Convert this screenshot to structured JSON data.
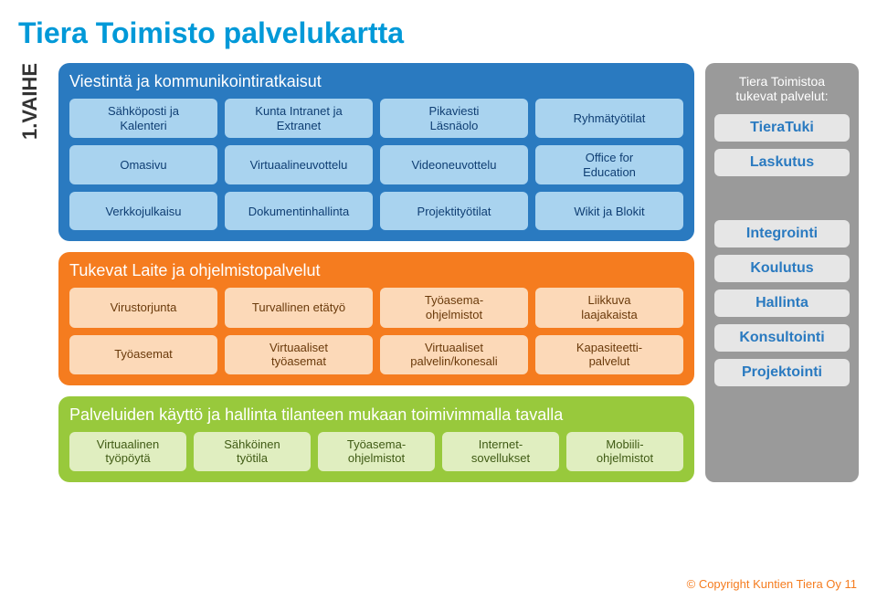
{
  "title": "Tiera Toimisto palvelukartta",
  "title_color": "#0099d8",
  "vaihe_label": "1.VAIHE",
  "panels": {
    "blue": {
      "title": "Viestintä ja kommunikointiratkaisut",
      "bg": "#2a7ac0",
      "cell_bg": "#a9d3ef",
      "cell_text": "#0f3e73",
      "rows": [
        [
          "Sähköposti ja\nKalenteri",
          "Kunta Intranet ja\nExtranet",
          "Pikaviesti\nLäsnäolo",
          "Ryhmätyötilat"
        ],
        [
          "Omasivu",
          "Virtuaalineuvottelu",
          "Videoneuvottelu",
          "Office for\nEducation"
        ],
        [
          "Verkkojulkaisu",
          "Dokumentinhallinta",
          "Projektityötilat",
          "Wikit ja Blokit"
        ]
      ]
    },
    "orange": {
      "title": "Tukevat Laite ja ohjelmistopalvelut",
      "bg": "#f57c1f",
      "cell_bg": "#fcd9b8",
      "cell_text": "#6a3a0b",
      "rows": [
        [
          "Virustorjunta",
          "Turvallinen etätyö",
          "Työasema-\nohjelmistot",
          "Liikkuva\nlaajakaista"
        ],
        [
          "Työasemat",
          "Virtuaaliset\ntyöasemat",
          "Virtuaaliset\npalvelin/konesali",
          "Kapasiteetti-\npalvelut"
        ]
      ]
    },
    "green": {
      "title": "Palveluiden käyttö ja hallinta tilanteen mukaan toimivimmalla tavalla",
      "bg": "#98c93c",
      "cell_bg": "#e0eec0",
      "cell_text": "#3f5a14",
      "rows": [
        [
          "Virtuaalinen\ntyöpöytä",
          "Sähköinen\ntyötila",
          "Työasema-\nohjelmistot",
          "Internet-\nsovellukset",
          "Mobiili-\nohjelmistot"
        ]
      ]
    }
  },
  "side": {
    "bg": "#9a9a9a",
    "heading": "Tiera Toimistoa\ntukevat palvelut:",
    "item_bg": "#e6e6e6",
    "item_text": "#2a7ac0",
    "items_top": [
      "TieraTuki",
      "Laskutus"
    ],
    "items_bottom": [
      "Integrointi",
      "Koulutus",
      "Hallinta",
      "Konsultointi",
      "Projektointi"
    ]
  },
  "footer": "© Copyright Kuntien Tiera Oy 11",
  "footer_color": "#f57c1f"
}
